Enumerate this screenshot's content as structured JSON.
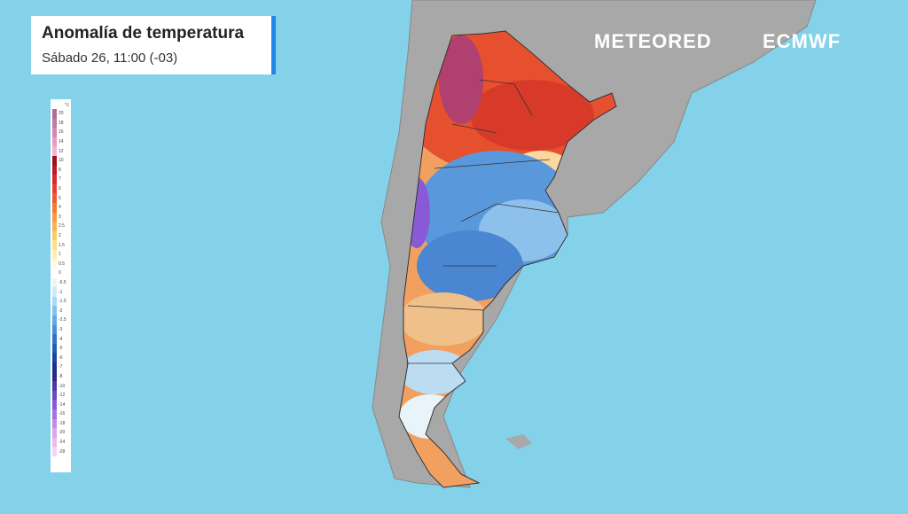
{
  "header": {
    "title": "Anomalía de temperatura",
    "subtitle": "Sábado 26, 11:00 (-03)"
  },
  "logos": {
    "primary": "METEORED",
    "secondary": "ECMWF"
  },
  "legend": {
    "unit": "°c",
    "items": [
      {
        "label": "20",
        "color": "#b07090"
      },
      {
        "label": "18",
        "color": "#c07a9c"
      },
      {
        "label": "16",
        "color": "#d488b0"
      },
      {
        "label": "14",
        "color": "#e59cc2"
      },
      {
        "label": "12",
        "color": "#f0b4d2"
      },
      {
        "label": "10",
        "color": "#a01020"
      },
      {
        "label": "8",
        "color": "#c0182a"
      },
      {
        "label": "7",
        "color": "#d82a2a"
      },
      {
        "label": "6",
        "color": "#e84030"
      },
      {
        "label": "5",
        "color": "#f05a30"
      },
      {
        "label": "4",
        "color": "#f57a34"
      },
      {
        "label": "3",
        "color": "#f89a40"
      },
      {
        "label": "2.5",
        "color": "#fab450"
      },
      {
        "label": "2",
        "color": "#fcca68"
      },
      {
        "label": "1.5",
        "color": "#fde08a"
      },
      {
        "label": "1",
        "color": "#feefb0"
      },
      {
        "label": "0.5",
        "color": "#fff8dc"
      },
      {
        "label": "0",
        "color": "#ffffff"
      },
      {
        "label": "-0.5",
        "color": "#e8f6fc"
      },
      {
        "label": "-1",
        "color": "#cdeaf8"
      },
      {
        "label": "-1.5",
        "color": "#a8d8f2"
      },
      {
        "label": "-2",
        "color": "#84c2ec"
      },
      {
        "label": "-2.5",
        "color": "#62a8e2"
      },
      {
        "label": "-3",
        "color": "#4a8ed6"
      },
      {
        "label": "-4",
        "color": "#3474c6"
      },
      {
        "label": "-5",
        "color": "#225cb4"
      },
      {
        "label": "-6",
        "color": "#1a46a0"
      },
      {
        "label": "-7",
        "color": "#20308a"
      },
      {
        "label": "-8",
        "color": "#2a2a80"
      },
      {
        "label": "-10",
        "color": "#4a3aa0"
      },
      {
        "label": "-12",
        "color": "#6a48c0"
      },
      {
        "label": "-14",
        "color": "#8a5ad6"
      },
      {
        "label": "-16",
        "color": "#aa70e0"
      },
      {
        "label": "-18",
        "color": "#c88ae6"
      },
      {
        "label": "-20",
        "color": "#dca4ea"
      },
      {
        "label": "-24",
        "color": "#eabcee"
      },
      {
        "label": "-28",
        "color": "#f4d4f2"
      }
    ]
  }
}
